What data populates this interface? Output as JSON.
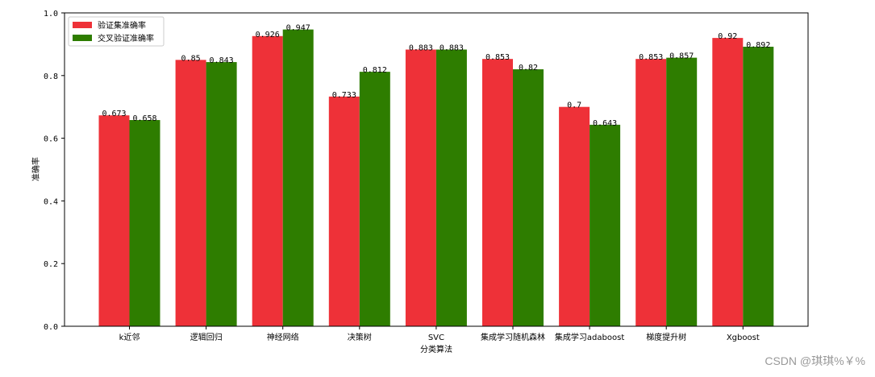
{
  "chart_data": {
    "type": "bar",
    "categories": [
      "k近邻",
      "逻辑回归",
      "神经网络",
      "决策树",
      "SVC",
      "集成学习随机森林",
      "集成学习adaboost",
      "梯度提升树",
      "Xgboost"
    ],
    "series": [
      {
        "name": "验证集准确率",
        "values": [
          0.673,
          0.85,
          0.926,
          0.733,
          0.883,
          0.853,
          0.7,
          0.853,
          0.92
        ],
        "color": "#ee3138"
      },
      {
        "name": "交叉验证准确率",
        "values": [
          0.658,
          0.843,
          0.947,
          0.812,
          0.883,
          0.82,
          0.643,
          0.857,
          0.892
        ],
        "color": "#2e7d00"
      }
    ],
    "value_labels": [
      [
        "0.673",
        "0.85",
        "0.926",
        "0.733",
        "0.883",
        "0.853",
        "0.7",
        "0.853",
        "0.92"
      ],
      [
        "0.658",
        "0.843",
        "0.947",
        "0.812",
        "0.883",
        "0.82",
        "0.643",
        "0.857",
        "0.892"
      ]
    ],
    "xlabel": "分类算法",
    "ylabel": "准确率",
    "ylim": [
      0,
      1.0
    ],
    "yticks": [
      "0.0",
      "0.2",
      "0.4",
      "0.6",
      "0.8",
      "1.0"
    ],
    "grid": false,
    "legend_position": "upper-left"
  },
  "watermark": "CSDN @琪琪%￥%"
}
